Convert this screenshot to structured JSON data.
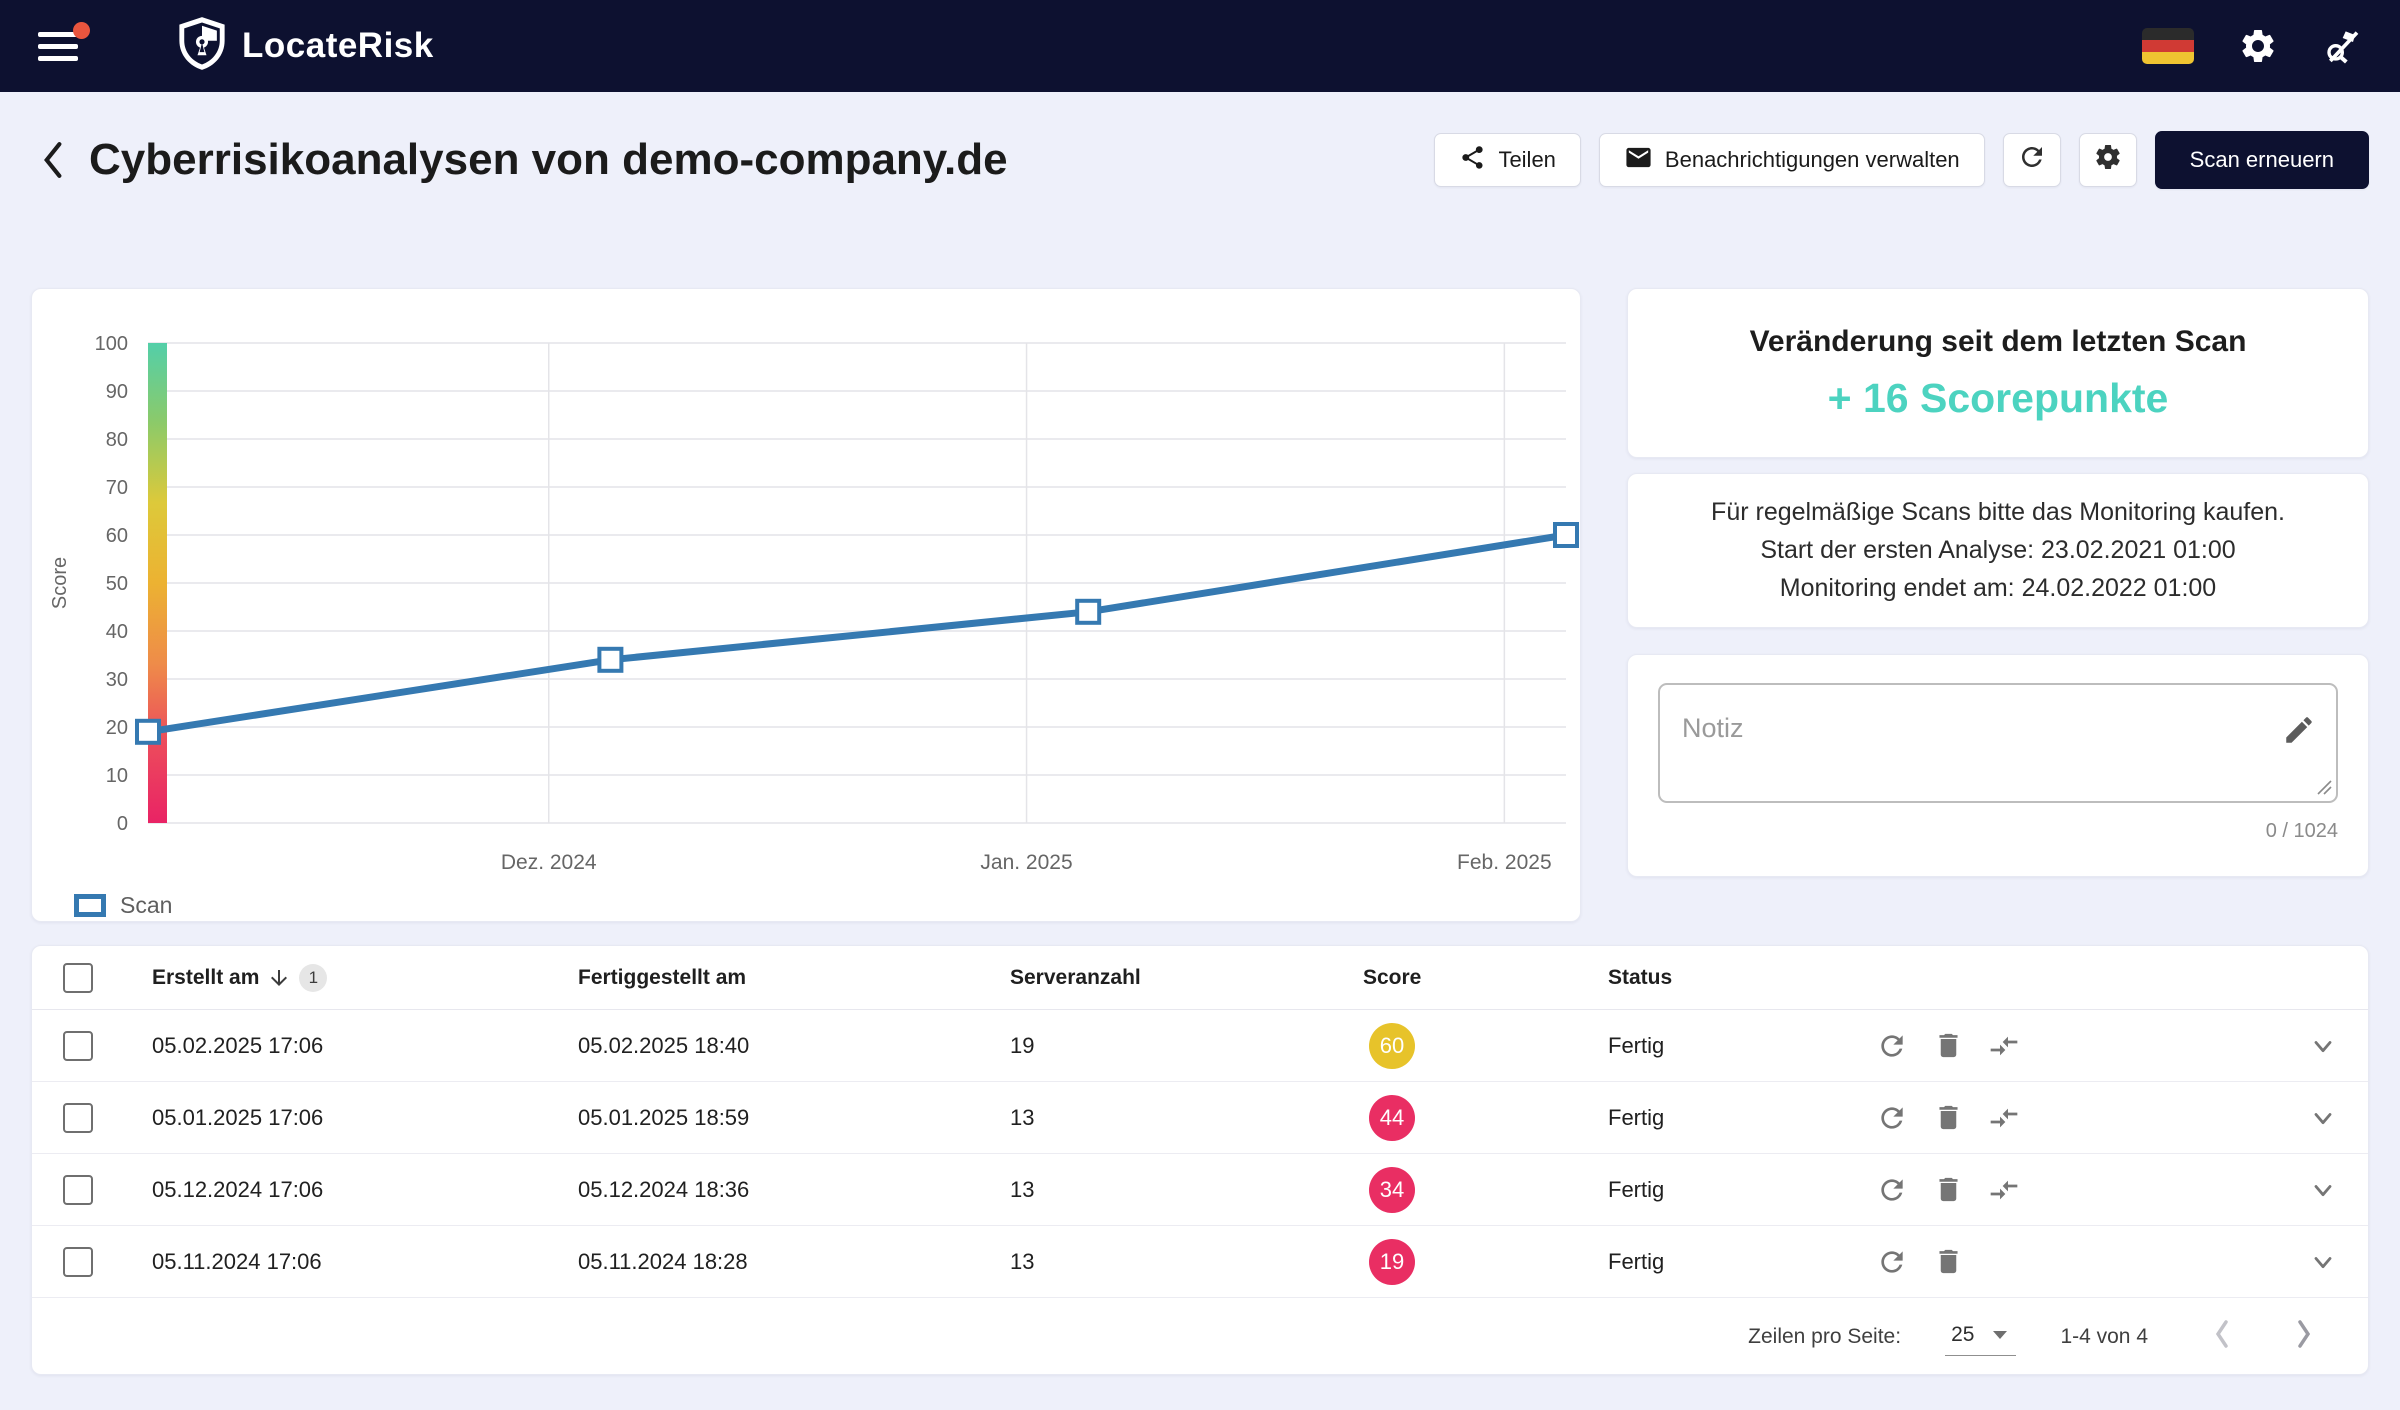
{
  "colors": {
    "navbar": "#0d1130",
    "accent_teal": "#4cd3c0",
    "chart_blue": "#3579b1",
    "score_yellow": "#e7c32a",
    "score_red": "#e92e63",
    "background": "#eef0fa"
  },
  "navbar": {
    "brand": "LocateRisk"
  },
  "header": {
    "title": "Cyberrisikoanalysen von demo-company.de",
    "share_label": "Teilen",
    "notifications_label": "Benachrichtigungen verwalten",
    "rescan_label": "Scan erneuern"
  },
  "chart_data": {
    "type": "line",
    "ylabel": "Score",
    "ylim": [
      0,
      100
    ],
    "y_ticks": [
      0,
      10,
      20,
      30,
      40,
      50,
      60,
      70,
      80,
      90,
      100
    ],
    "x_domain_days": [
      0,
      92
    ],
    "x_gridlines": [
      {
        "label": "Dez. 2024",
        "day": 26
      },
      {
        "label": "Jan. 2025",
        "day": 57
      },
      {
        "label": "Feb. 2025",
        "day": 88
      }
    ],
    "series": [
      {
        "name": "Scan",
        "color": "#3579b1",
        "points": [
          {
            "date": "05.11.2024",
            "x_days": 0,
            "value": 19
          },
          {
            "date": "05.12.2024",
            "x_days": 30,
            "value": 34
          },
          {
            "date": "05.01.2025",
            "x_days": 61,
            "value": 44
          },
          {
            "date": "05.02.2025",
            "x_days": 92,
            "value": 60
          }
        ]
      }
    ],
    "legend": [
      {
        "label": "Scan",
        "color": "#3579b1"
      }
    ],
    "gradient_bar": [
      "#53cfa9",
      "#8cca69",
      "#ddc93a",
      "#ecb232",
      "#ee8c49",
      "#ec4b5c",
      "#e92365"
    ],
    "grid": true,
    "legend_position": "bottom-left"
  },
  "panel": {
    "change_title": "Veränderung seit dem letzten Scan",
    "change_value": "+ 16 Scorepunkte",
    "monitoring_lines": [
      "Für regelmäßige Scans bitte das Monitoring kaufen.",
      "Start der ersten Analyse: 23.02.2021 01:00",
      "Monitoring endet am: 24.02.2022 01:00"
    ],
    "note": {
      "placeholder": "Notiz",
      "value": "",
      "counter": "0 / 1024"
    }
  },
  "table": {
    "columns": [
      "Erstellt am",
      "Fertiggestellt am",
      "Serveranzahl",
      "Score",
      "Status"
    ],
    "sort": {
      "column": "Erstellt am",
      "direction": "desc",
      "order_badge": "1"
    },
    "rows": [
      {
        "created": "05.02.2025 17:06",
        "finished": "05.02.2025 18:40",
        "servers": "19",
        "score": "60",
        "score_color": "#e7c32a",
        "status": "Fertig",
        "has_compare": true
      },
      {
        "created": "05.01.2025 17:06",
        "finished": "05.01.2025 18:59",
        "servers": "13",
        "score": "44",
        "score_color": "#e92e63",
        "status": "Fertig",
        "has_compare": true
      },
      {
        "created": "05.12.2024 17:06",
        "finished": "05.12.2024 18:36",
        "servers": "13",
        "score": "34",
        "score_color": "#e92e63",
        "status": "Fertig",
        "has_compare": true
      },
      {
        "created": "05.11.2024 17:06",
        "finished": "05.11.2024 18:28",
        "servers": "13",
        "score": "19",
        "score_color": "#e92e63",
        "status": "Fertig",
        "has_compare": false
      }
    ],
    "footer": {
      "rows_per_page_label": "Zeilen pro Seite:",
      "rows_per_page_value": "25",
      "range_label": "1-4 von 4"
    }
  }
}
